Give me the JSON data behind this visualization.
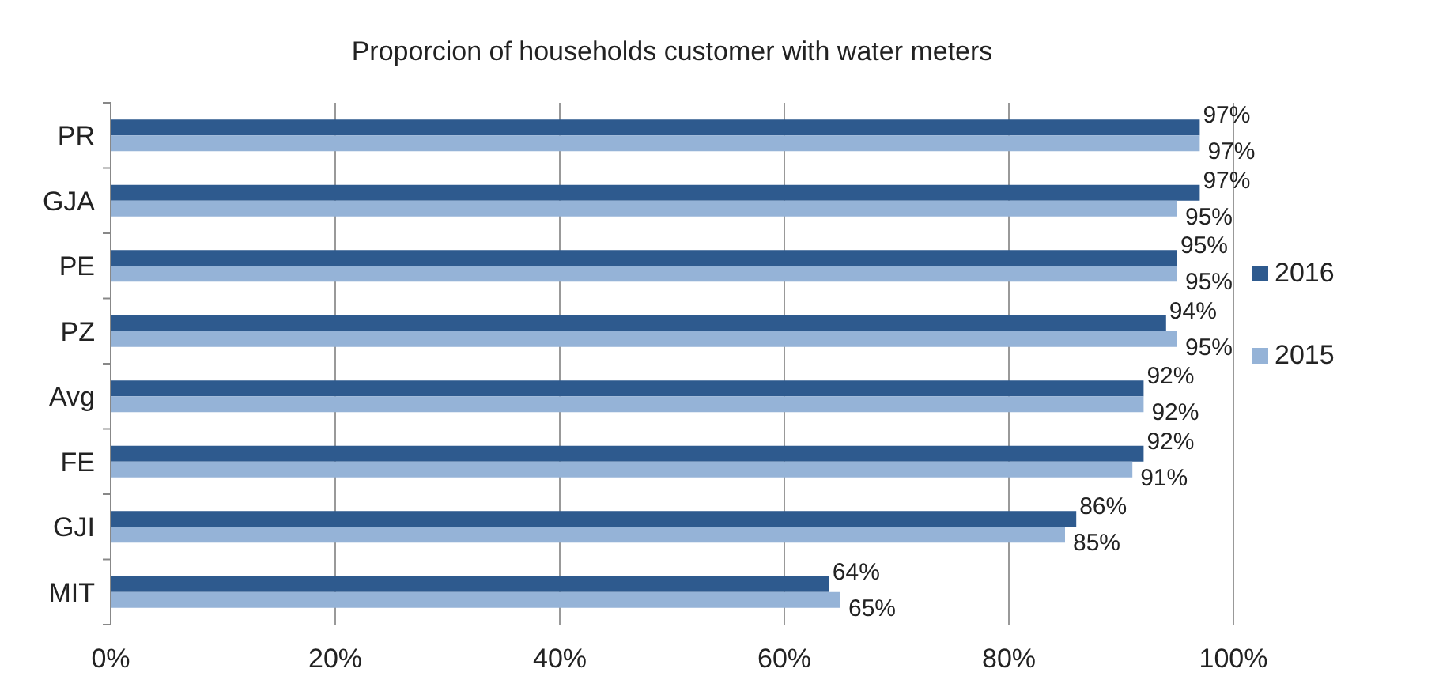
{
  "chart_data": {
    "type": "bar",
    "orientation": "horizontal",
    "title": "Proporcion of  households  customer with water meters",
    "categories": [
      "PR",
      "GJA",
      "PE",
      "PZ",
      "Avg",
      "FE",
      "GJI",
      "MIT"
    ],
    "series": [
      {
        "name": "2016",
        "color": "#2e5a8e",
        "values": [
          97,
          97,
          95,
          94,
          92,
          92,
          86,
          64
        ],
        "value_labels": [
          "97%",
          "97%",
          "95%",
          "94%",
          "92%",
          "92%",
          "86%",
          "64%"
        ]
      },
      {
        "name": "2015",
        "color": "#95b3d7",
        "values": [
          97,
          95,
          95,
          95,
          92,
          91,
          85,
          65
        ],
        "value_labels": [
          "97%",
          "95%",
          "95%",
          "95%",
          "92%",
          "91%",
          "85%",
          "65%"
        ]
      }
    ],
    "xlim": [
      0,
      100
    ],
    "xticks": [
      {
        "value": 0,
        "label": "0%"
      },
      {
        "value": 20,
        "label": "20%"
      },
      {
        "value": 40,
        "label": "40%"
      },
      {
        "value": 60,
        "label": "60%"
      },
      {
        "value": 80,
        "label": "80%"
      },
      {
        "value": 100,
        "label": "100%"
      }
    ],
    "grid": "x",
    "legend": "right"
  }
}
